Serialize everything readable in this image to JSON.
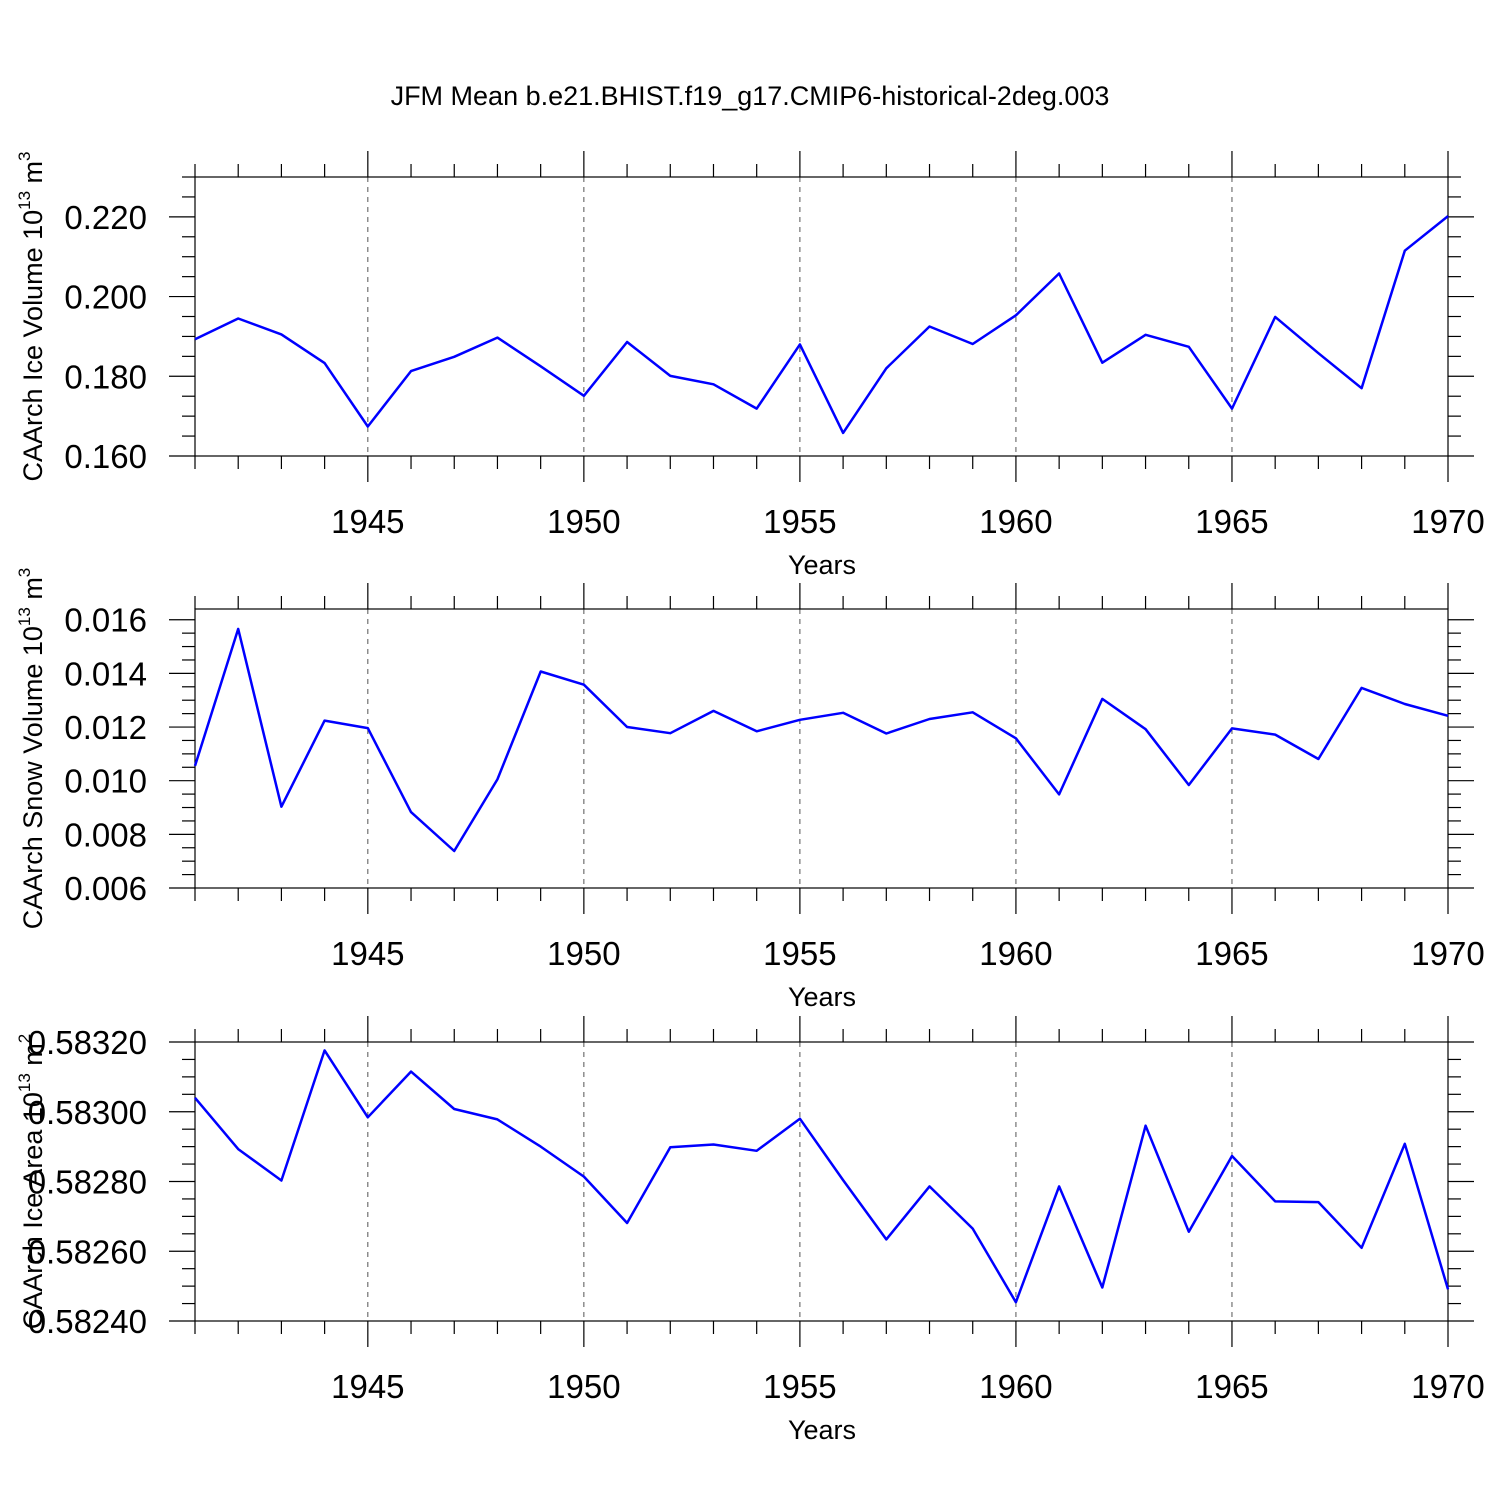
{
  "title": "JFM Mean b.e21.BHIST.f19_g17.CMIP6-historical-2deg.003",
  "chart_data": [
    {
      "type": "line",
      "ylabel": "CAArch Ice Volume 10",
      "ylabel_sup": "13",
      "ylabel_unit": " m",
      "ylabel_unit_sup": "3",
      "xlabel": "Years",
      "xlim": [
        1941,
        1970
      ],
      "ylim": [
        0.16,
        0.23
      ],
      "ytick_values": [
        0.16,
        0.18,
        0.2,
        0.22
      ],
      "ytick_labels": [
        "0.160",
        "0.180",
        "0.200",
        "0.220"
      ],
      "xtick_values": [
        1945,
        1950,
        1955,
        1960,
        1965,
        1970
      ],
      "xtick_labels": [
        "1945",
        "1950",
        "1955",
        "1960",
        "1965",
        "1970"
      ],
      "grid_x": true,
      "color": "#0000ff",
      "x": [
        1941,
        1942,
        1943,
        1944,
        1945,
        1946,
        1947,
        1948,
        1949,
        1950,
        1951,
        1952,
        1953,
        1954,
        1955,
        1956,
        1957,
        1958,
        1959,
        1960,
        1961,
        1962,
        1963,
        1964,
        1965,
        1966,
        1967,
        1968,
        1969,
        1970
      ],
      "values": [
        0.1893,
        0.1945,
        0.1905,
        0.1833,
        0.1674,
        0.1813,
        0.1849,
        0.1897,
        0.1825,
        0.1751,
        0.1886,
        0.1801,
        0.178,
        0.1719,
        0.188,
        0.1658,
        0.182,
        0.1925,
        0.1881,
        0.1953,
        0.2058,
        0.1834,
        0.1904,
        0.1874,
        0.1719,
        0.1949,
        0.1858,
        0.177,
        0.2115,
        0.2202
      ]
    },
    {
      "type": "line",
      "ylabel": "CAArch Snow Volume 10",
      "ylabel_sup": "13",
      "ylabel_unit": " m",
      "ylabel_unit_sup": "3",
      "xlabel": "Years",
      "xlim": [
        1941,
        1970
      ],
      "ylim": [
        0.006,
        0.0164
      ],
      "ytick_values": [
        0.006,
        0.008,
        0.01,
        0.012,
        0.014,
        0.016
      ],
      "ytick_labels": [
        "0.006",
        "0.008",
        "0.010",
        "0.012",
        "0.014",
        "0.016"
      ],
      "xtick_values": [
        1945,
        1950,
        1955,
        1960,
        1965,
        1970
      ],
      "xtick_labels": [
        "1945",
        "1950",
        "1955",
        "1960",
        "1965",
        "1970"
      ],
      "grid_x": true,
      "color": "#0000ff",
      "x": [
        1941,
        1942,
        1943,
        1944,
        1945,
        1946,
        1947,
        1948,
        1949,
        1950,
        1951,
        1952,
        1953,
        1954,
        1955,
        1956,
        1957,
        1958,
        1959,
        1960,
        1961,
        1962,
        1963,
        1964,
        1965,
        1966,
        1967,
        1968,
        1969,
        1970
      ],
      "values": [
        0.01055,
        0.01566,
        0.00903,
        0.01224,
        0.01196,
        0.00883,
        0.00738,
        0.01005,
        0.01407,
        0.01358,
        0.012,
        0.01177,
        0.0126,
        0.01184,
        0.01227,
        0.01253,
        0.01176,
        0.0123,
        0.01255,
        0.01158,
        0.00949,
        0.01305,
        0.01192,
        0.00984,
        0.01195,
        0.01172,
        0.01081,
        0.01346,
        0.01286,
        0.01242
      ]
    },
    {
      "type": "line",
      "ylabel": "CAArch Ice Area 10",
      "ylabel_sup": "13",
      "ylabel_unit": " m",
      "ylabel_unit_sup": "2",
      "xlabel": "Years",
      "xlim": [
        1941,
        1970
      ],
      "ylim": [
        0.5824,
        0.5832
      ],
      "ytick_values": [
        0.5824,
        0.5826,
        0.5828,
        0.583,
        0.5832
      ],
      "ytick_labels": [
        "0.58240",
        "0.58260",
        "0.58280",
        "0.58300",
        "0.58320"
      ],
      "xtick_values": [
        1945,
        1950,
        1955,
        1960,
        1965,
        1970
      ],
      "xtick_labels": [
        "1945",
        "1950",
        "1955",
        "1960",
        "1965",
        "1970"
      ],
      "grid_x": true,
      "color": "#0000ff",
      "x": [
        1941,
        1942,
        1943,
        1944,
        1945,
        1946,
        1947,
        1948,
        1949,
        1950,
        1951,
        1952,
        1953,
        1954,
        1955,
        1956,
        1957,
        1958,
        1959,
        1960,
        1961,
        1962,
        1963,
        1964,
        1965,
        1966,
        1967,
        1968,
        1969,
        1970
      ],
      "values": [
        0.58304,
        0.582893,
        0.582803,
        0.583176,
        0.582984,
        0.583115,
        0.583008,
        0.582978,
        0.5829,
        0.582814,
        0.582681,
        0.582898,
        0.582906,
        0.582888,
        0.58298,
        0.582804,
        0.582634,
        0.582786,
        0.582665,
        0.582454,
        0.582786,
        0.582496,
        0.58296,
        0.582656,
        0.582873,
        0.582743,
        0.582741,
        0.58261,
        0.582908,
        0.582491
      ]
    }
  ]
}
